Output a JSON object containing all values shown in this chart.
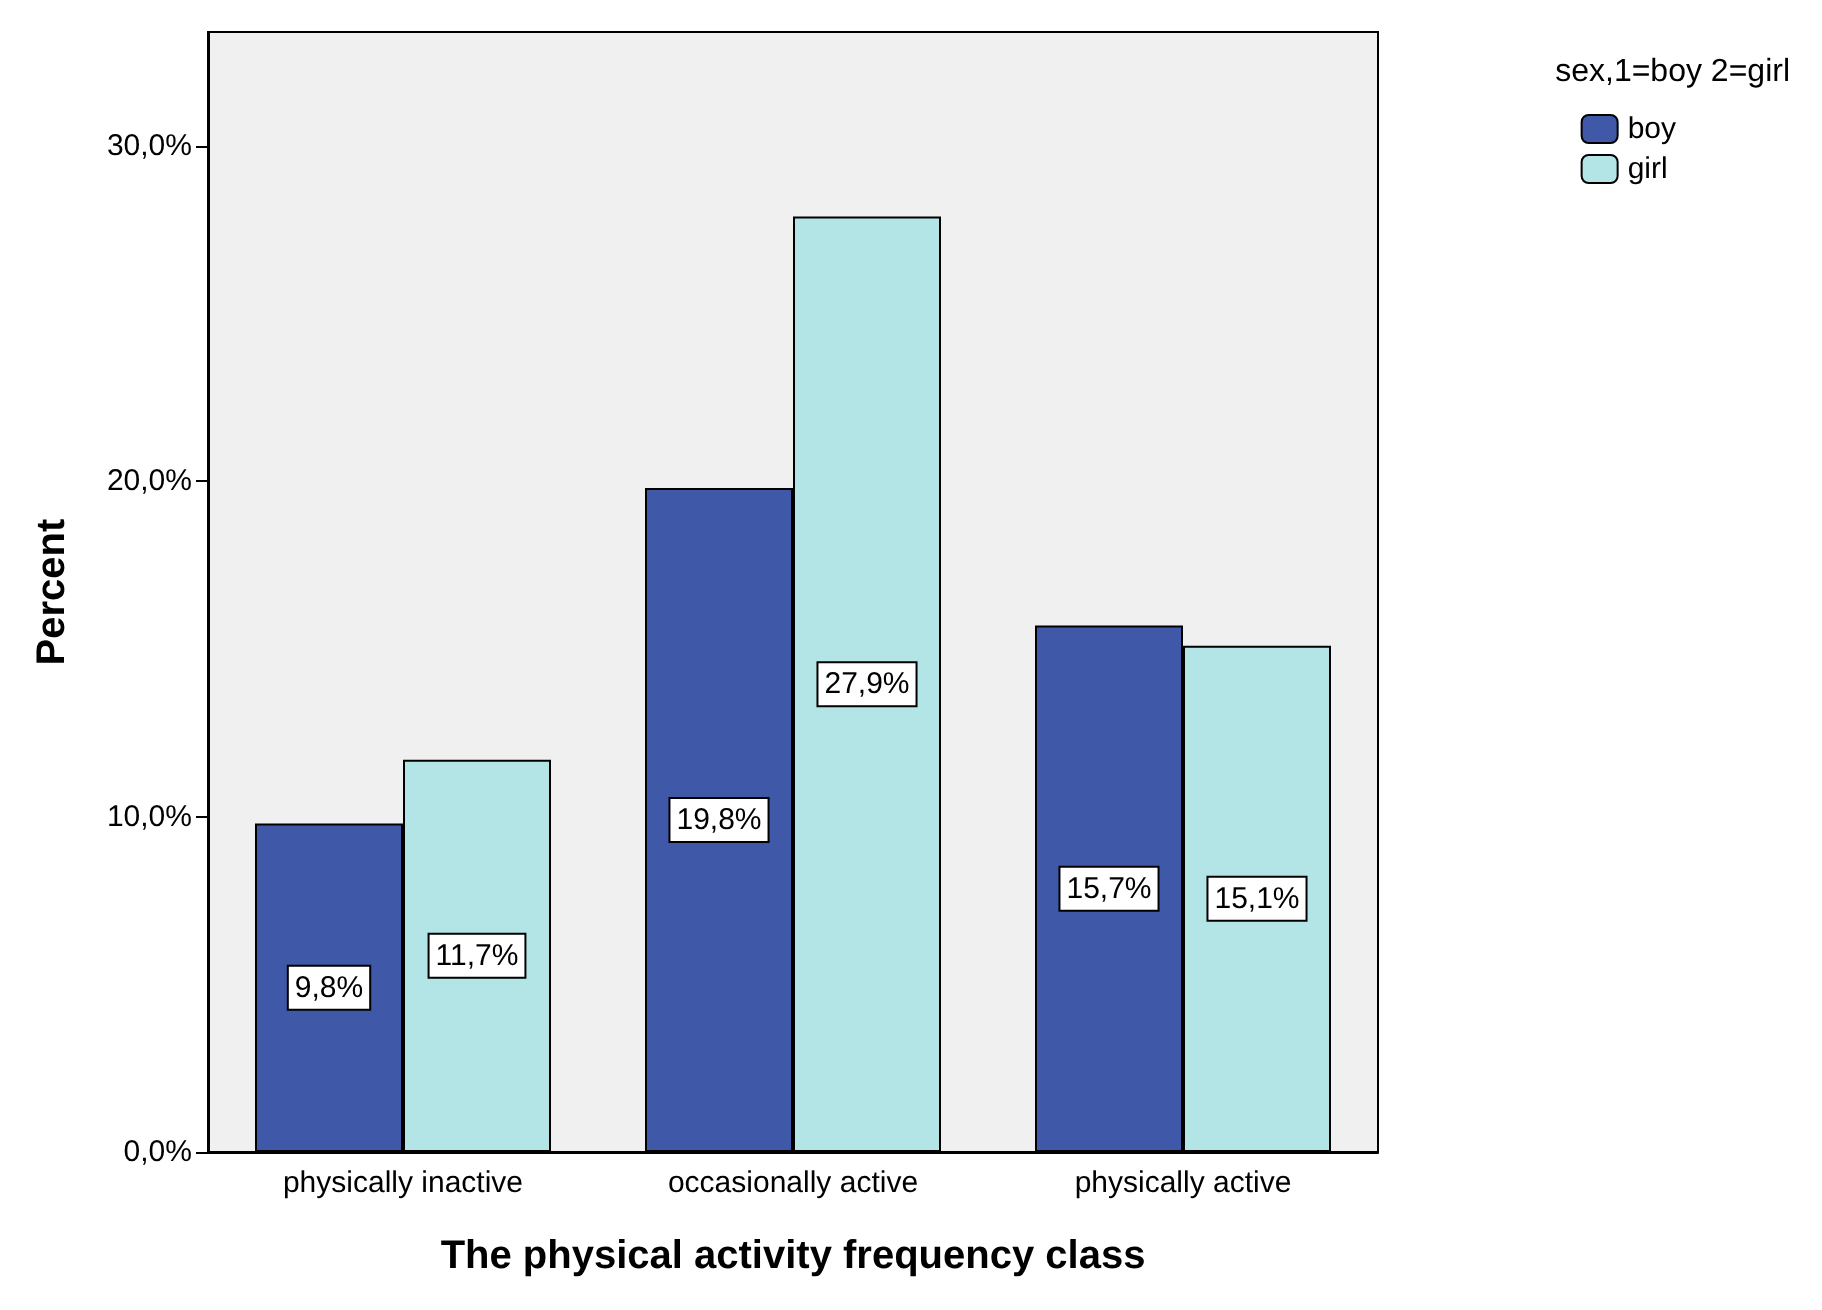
{
  "chart_data": {
    "type": "bar",
    "xlabel": "The physical activity frequency class",
    "ylabel": "Percent",
    "legend_title": "sex,1=boy 2=girl",
    "legend": "top right",
    "grid": false,
    "categories": [
      "physically inactive",
      "occasionally active",
      "physically active"
    ],
    "series": [
      {
        "name": "boy",
        "color": "#3f58a8",
        "values": [
          9.8,
          19.8,
          15.7
        ],
        "value_labels": [
          "9,8%",
          "19,8%",
          "15,7%"
        ]
      },
      {
        "name": "girl",
        "color": "#b3e5e6",
        "values": [
          11.7,
          27.9,
          15.1
        ],
        "value_labels": [
          "11,7%",
          "27,9%",
          "15,1%"
        ]
      }
    ],
    "ylim": [
      0,
      33.4
    ],
    "yticks": [
      {
        "value": 0,
        "label": "0,0%"
      },
      {
        "value": 10,
        "label": "10,0%"
      },
      {
        "value": 20,
        "label": "20,0%"
      },
      {
        "value": 30,
        "label": "30,0%"
      }
    ]
  }
}
